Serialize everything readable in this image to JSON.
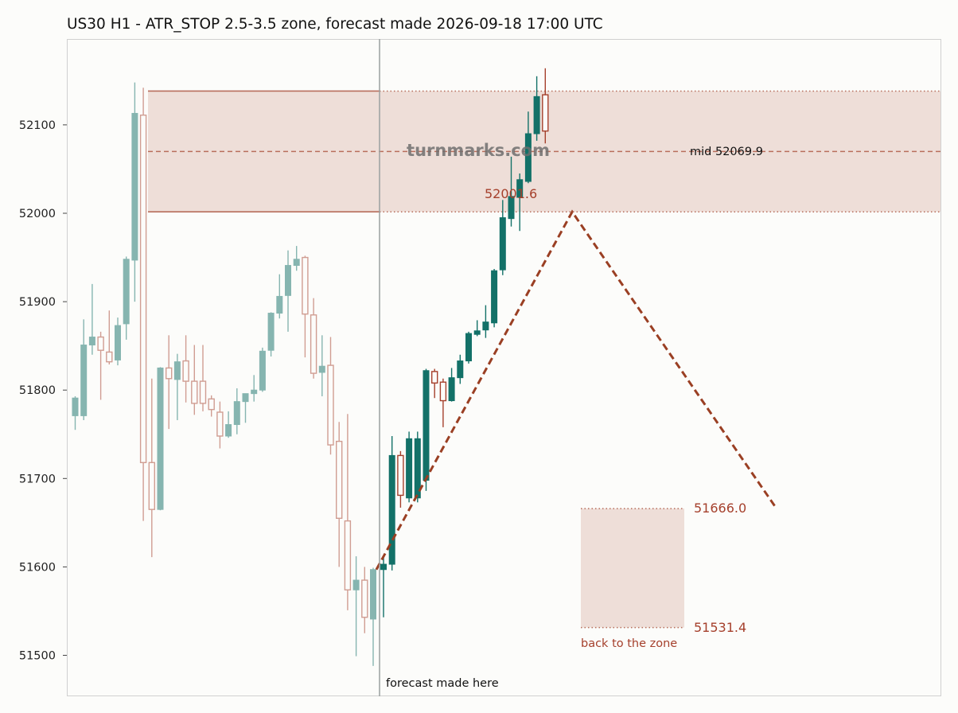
{
  "chart_data": {
    "type": "candlestick",
    "title": "US30 H1 - ATR_STOP 2.5-3.5 zone, forecast made 2026-09-18 17:00 UTC",
    "ylim": [
      51455,
      52195
    ],
    "y_ticks": [
      "51500",
      "51600",
      "51700",
      "51800",
      "51900",
      "52000",
      "52100"
    ],
    "grid": false,
    "colors": {
      "up": "#137168",
      "down": "#a5402c",
      "zone_fill": "#eeded8",
      "zone_edge": "#b86e5c",
      "forecast_line": "#9a3f23",
      "vline": "#9aa0a0"
    },
    "history_candles": [
      [
        51771,
        51791,
        51755,
        51793
      ],
      [
        51771,
        51851,
        51766,
        51880
      ],
      [
        51851,
        51860,
        51840,
        51920
      ],
      [
        51860,
        51845,
        51789,
        51866
      ],
      [
        51843,
        51832,
        51829,
        51890
      ],
      [
        51834,
        51873,
        51828,
        51882
      ],
      [
        51875,
        51948,
        51857,
        51951
      ],
      [
        51947,
        52113,
        51900,
        52148
      ],
      [
        52111,
        51718,
        51652,
        52142
      ],
      [
        51718,
        51665,
        51611,
        51813
      ],
      [
        51665,
        51825,
        51664,
        51826
      ],
      [
        51825,
        51813,
        51756,
        51862
      ],
      [
        51812,
        51832,
        51766,
        51841
      ],
      [
        51833,
        51810,
        51786,
        51862
      ],
      [
        51810,
        51785,
        51772,
        51851
      ],
      [
        51810,
        51785,
        51776,
        51851
      ],
      [
        51790,
        51778,
        51770,
        51794
      ],
      [
        51775,
        51748,
        51734,
        51787
      ],
      [
        51748,
        51761,
        51746,
        51776
      ],
      [
        51761,
        51787,
        51750,
        51802
      ],
      [
        51787,
        51796,
        51763,
        51796
      ],
      [
        51796,
        51800,
        51787,
        51817
      ],
      [
        51800,
        51844,
        51798,
        51848
      ],
      [
        51845,
        51887,
        51838,
        51888
      ],
      [
        51887,
        51906,
        51881,
        51931
      ],
      [
        51907,
        51941,
        51866,
        51958
      ],
      [
        51941,
        51948,
        51935,
        51963
      ],
      [
        51950,
        51886,
        51837,
        51952
      ],
      [
        51885,
        51819,
        51813,
        51904
      ],
      [
        51820,
        51827,
        51793,
        51862
      ],
      [
        51828,
        51738,
        51727,
        51860
      ],
      [
        51742,
        51655,
        51600,
        51764
      ],
      [
        51652,
        51574,
        51551,
        51773
      ],
      [
        51574,
        51585,
        51499,
        51612
      ],
      [
        51585,
        51543,
        51525,
        51600
      ],
      [
        51541,
        51597,
        51488,
        51599
      ]
    ],
    "actual_candles": [
      [
        51597,
        51603,
        51543,
        51611
      ],
      [
        51603,
        51726,
        51596,
        51748
      ],
      [
        51726,
        51681,
        51667,
        51731
      ],
      [
        51678,
        51745,
        51673,
        51753
      ],
      [
        51678,
        51745,
        51673,
        51753
      ],
      [
        51698,
        51822,
        51686,
        51824
      ],
      [
        51821,
        51808,
        51791,
        51824
      ],
      [
        51809,
        51788,
        51758,
        51813
      ],
      [
        51788,
        51814,
        51787,
        51825
      ],
      [
        51814,
        51833,
        51807,
        51840
      ],
      [
        51833,
        51864,
        51830,
        51866
      ],
      [
        51863,
        51867,
        51861,
        51879
      ],
      [
        51868,
        51877,
        51859,
        51896
      ],
      [
        51876,
        51935,
        51871,
        51937
      ],
      [
        51936,
        51995,
        51930,
        52015
      ],
      [
        51994,
        52019,
        51985,
        52064
      ],
      [
        52018,
        52038,
        51980,
        52045
      ],
      [
        52036,
        52090,
        52034,
        52115
      ],
      [
        52090,
        52132,
        52082,
        52155
      ],
      [
        52134,
        52093,
        52079,
        52164
      ]
    ],
    "forecast_path": [
      {
        "bar": 0,
        "y": 51597
      },
      {
        "bar": 11.5,
        "y": 52001.6
      },
      {
        "bar": 23.5,
        "y": 51666.0
      }
    ],
    "upper_zone": {
      "low": 52001.6,
      "high": 52138.2,
      "mid": 52069.9
    },
    "target_zone": {
      "low": 51531.4,
      "high": 51666.0
    }
  },
  "labels": {
    "forecast_made": "forecast made here",
    "mid": "mid 52069.9",
    "peak": "52001.6",
    "target_high": "51666.0",
    "target_low": "51531.4",
    "back_to_zone": "back to the zone",
    "watermark": "turnmarks.com"
  }
}
